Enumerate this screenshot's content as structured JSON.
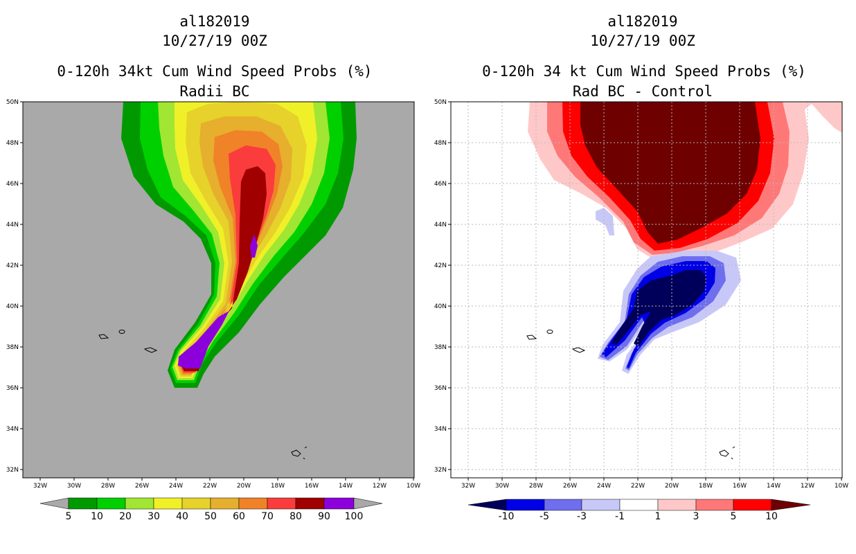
{
  "panels": [
    {
      "storm_id": "al182019",
      "datetime": "10/27/19 00Z",
      "title": "0-120h 34kt Cum Wind Speed Probs (%)",
      "subtitle": "Radii BC",
      "lat_ticks": [
        "50N",
        "48N",
        "46N",
        "44N",
        "42N",
        "40N",
        "38N",
        "36N",
        "34N",
        "32N"
      ],
      "lon_ticks": [
        "32W",
        "30W",
        "28W",
        "26W",
        "24W",
        "22W",
        "20W",
        "18W",
        "16W",
        "14W",
        "12W",
        "10W"
      ],
      "colorbar": {
        "labels": [
          "5",
          "10",
          "20",
          "30",
          "40",
          "50",
          "60",
          "70",
          "80",
          "90",
          "100"
        ],
        "colors": [
          "#009a00",
          "#00d000",
          "#a0e632",
          "#f0f028",
          "#e6d22a",
          "#e6af2d",
          "#f08228",
          "#fa3c3c",
          "#a00000",
          "#8c00dc"
        ],
        "under_color": "#a9a9a9",
        "over_color": "#a9a9a9"
      }
    },
    {
      "storm_id": "al182019",
      "datetime": "10/27/19 00Z",
      "title": "0-120h 34 kt Cum Wind Speed Probs (%)",
      "subtitle": "Rad BC - Control",
      "lat_ticks": [
        "50N",
        "48N",
        "46N",
        "44N",
        "42N",
        "40N",
        "38N",
        "36N",
        "34N",
        "32N"
      ],
      "lon_ticks": [
        "32W",
        "30W",
        "28W",
        "26W",
        "24W",
        "22W",
        "20W",
        "18W",
        "16W",
        "14W",
        "12W",
        "10W"
      ],
      "colorbar": {
        "labels": [
          "-10",
          "-5",
          "-3",
          "-1",
          "1",
          "3",
          "5",
          "10"
        ],
        "colors": [
          "#0000e6",
          "#6e6eef",
          "#c8c8f8",
          "#ffffff",
          "#ffc8c8",
          "#ff7878",
          "#ff0000"
        ],
        "under_color": "#00005a",
        "over_color": "#6e0000"
      }
    }
  ]
}
